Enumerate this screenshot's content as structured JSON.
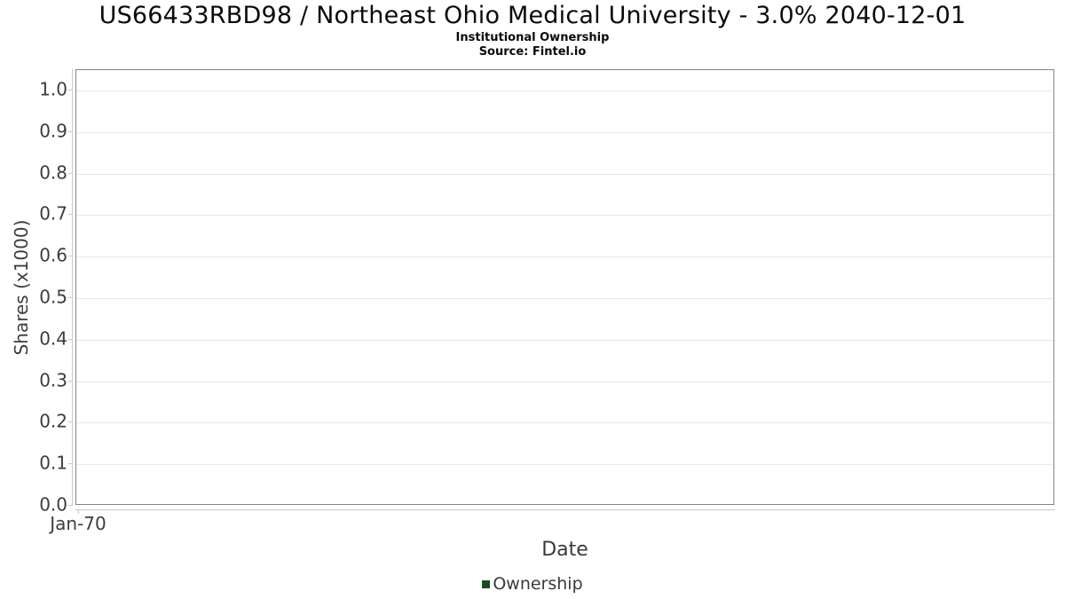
{
  "header": {
    "title": "US66433RBD98 / Northeast Ohio Medical University - 3.0% 2040-12-01",
    "subtitle": "Institutional Ownership",
    "source": "Source: Fintel.io"
  },
  "chart_data": {
    "type": "line",
    "title": "US66433RBD98 / Northeast Ohio Medical University - 3.0% 2040-12-01",
    "subtitle": "Institutional Ownership",
    "source": "Source: Fintel.io",
    "xlabel": "Date",
    "ylabel": "Shares (x1000)",
    "xticks": [
      "Jan-70"
    ],
    "yticks": [
      0.0,
      0.1,
      0.2,
      0.3,
      0.4,
      0.5,
      0.6,
      0.7,
      0.8,
      0.9,
      1.0
    ],
    "ytick_labels": [
      "0.0",
      "0.1",
      "0.2",
      "0.3",
      "0.4",
      "0.5",
      "0.6",
      "0.7",
      "0.8",
      "0.9",
      "1.0"
    ],
    "ylim": [
      0,
      1.049
    ],
    "grid": "horizontal",
    "legend_position": "bottom",
    "series": [
      {
        "name": "Ownership",
        "color": "#1e4a23",
        "x": [],
        "values": []
      }
    ]
  },
  "legend": {
    "items": [
      {
        "label": "Ownership",
        "color": "#1e4a23"
      }
    ]
  },
  "colors": {
    "plot_border": "#868686",
    "gridline": "#e7e7e7",
    "axis_line": "#c9c9c9",
    "tick_text": "#3d3d3d",
    "title_text": "#0a0a0a",
    "legend_green": "#1e4a23"
  }
}
